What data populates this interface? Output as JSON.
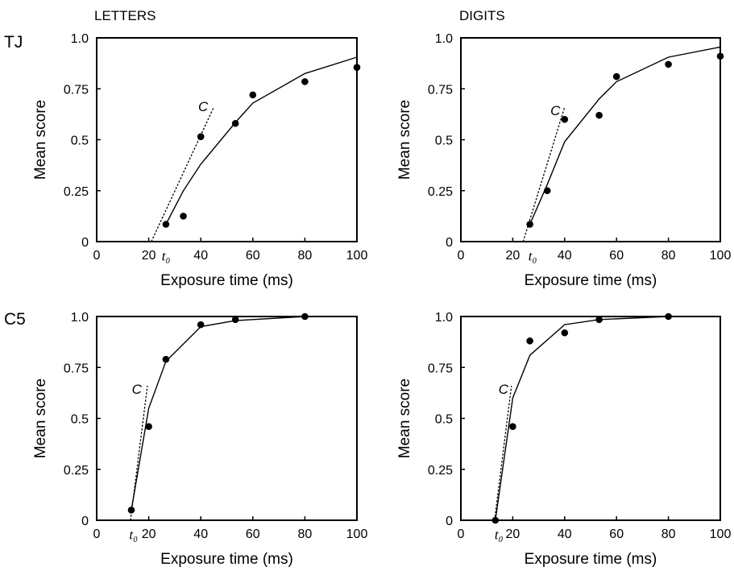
{
  "column_titles": [
    "LETTERS",
    "DIGITS"
  ],
  "row_labels": [
    "TJ",
    "C5"
  ],
  "chart_data": [
    {
      "type": "scatter",
      "panel": "TJ-LETTERS",
      "xlabel": "Exposure time (ms)",
      "ylabel": "Mean score",
      "xlim": [
        0,
        100
      ],
      "ylim": [
        0,
        1.0
      ],
      "x_ticks": [
        0,
        20,
        40,
        60,
        80,
        100
      ],
      "y_ticks": [
        "0",
        "0.25",
        "0.5",
        "0.75",
        "1.0"
      ],
      "series": [
        {
          "kind": "points",
          "x": [
            26.6,
            33.3,
            40,
            53.3,
            60,
            80,
            100
          ],
          "y": [
            0.085,
            0.125,
            0.515,
            0.58,
            0.72,
            0.785,
            0.855
          ]
        },
        {
          "kind": "fit",
          "x": [
            26.6,
            33.3,
            40,
            53.3,
            60,
            80,
            100
          ],
          "y": [
            0.085,
            0.25,
            0.38,
            0.585,
            0.68,
            0.825,
            0.905
          ]
        },
        {
          "kind": "tangent",
          "x": [
            21,
            45
          ],
          "y": [
            0,
            0.66
          ]
        }
      ],
      "annotations": [
        {
          "text": "C",
          "x": 39,
          "y": 0.64
        },
        {
          "text": "t₀",
          "x": 25,
          "y": -0.07
        }
      ]
    },
    {
      "type": "scatter",
      "panel": "TJ-DIGITS",
      "xlabel": "Exposure time (ms)",
      "ylabel": "Mean score",
      "xlim": [
        0,
        100
      ],
      "ylim": [
        0,
        1.0
      ],
      "x_ticks": [
        0,
        20,
        40,
        60,
        80,
        100
      ],
      "y_ticks": [
        "0",
        "0.25",
        "0.5",
        "0.75",
        "1.0"
      ],
      "series": [
        {
          "kind": "points",
          "x": [
            26.6,
            33.3,
            40,
            53.3,
            60,
            80,
            100
          ],
          "y": [
            0.085,
            0.25,
            0.6,
            0.62,
            0.81,
            0.87,
            0.91
          ]
        },
        {
          "kind": "fit",
          "x": [
            26.6,
            33.3,
            40,
            53.3,
            60,
            80,
            100
          ],
          "y": [
            0.085,
            0.28,
            0.49,
            0.7,
            0.785,
            0.905,
            0.955
          ]
        },
        {
          "kind": "tangent",
          "x": [
            24,
            40
          ],
          "y": [
            0,
            0.66
          ]
        }
      ],
      "annotations": [
        {
          "text": "C",
          "x": 34.5,
          "y": 0.62
        },
        {
          "text": "t₀",
          "x": 26,
          "y": -0.07
        }
      ]
    },
    {
      "type": "scatter",
      "panel": "C5-LETTERS",
      "xlabel": "Exposure time (ms)",
      "ylabel": "Mean score",
      "xlim": [
        0,
        100
      ],
      "ylim": [
        0,
        1.0
      ],
      "x_ticks": [
        0,
        20,
        40,
        60,
        80,
        100
      ],
      "y_ticks": [
        "0",
        "0.25",
        "0.5",
        "0.75",
        "1.0"
      ],
      "series": [
        {
          "kind": "points",
          "x": [
            13.3,
            20,
            26.6,
            40,
            53.3,
            80
          ],
          "y": [
            0.05,
            0.46,
            0.79,
            0.96,
            0.985,
            1.0
          ]
        },
        {
          "kind": "fit",
          "x": [
            13.3,
            20,
            26.6,
            40,
            53.3,
            80
          ],
          "y": [
            0.05,
            0.55,
            0.78,
            0.95,
            0.98,
            1.0
          ]
        },
        {
          "kind": "tangent",
          "x": [
            13,
            19.5
          ],
          "y": [
            0,
            0.66
          ]
        }
      ],
      "annotations": [
        {
          "text": "C",
          "x": 13.5,
          "y": 0.62
        },
        {
          "text": "t₀",
          "x": 12.5,
          "y": -0.07
        }
      ]
    },
    {
      "type": "scatter",
      "panel": "C5-DIGITS",
      "xlabel": "Exposure time (ms)",
      "ylabel": "Mean score",
      "xlim": [
        0,
        100
      ],
      "ylim": [
        0,
        1.0
      ],
      "x_ticks": [
        0,
        20,
        40,
        60,
        80,
        100
      ],
      "y_ticks": [
        "0",
        "0.25",
        "0.5",
        "0.75",
        "1.0"
      ],
      "series": [
        {
          "kind": "points",
          "x": [
            13.3,
            20,
            26.6,
            40,
            53.3,
            80
          ],
          "y": [
            0.0,
            0.46,
            0.88,
            0.92,
            0.985,
            1.0
          ]
        },
        {
          "kind": "fit",
          "x": [
            13.3,
            20,
            26.6,
            40,
            53.3,
            80
          ],
          "y": [
            0.0,
            0.6,
            0.81,
            0.96,
            0.985,
            1.0
          ]
        },
        {
          "kind": "tangent",
          "x": [
            13,
            19.5
          ],
          "y": [
            0,
            0.66
          ]
        }
      ],
      "annotations": [
        {
          "text": "C",
          "x": 14.5,
          "y": 0.62
        },
        {
          "text": "t₀",
          "x": 13,
          "y": -0.07
        }
      ]
    }
  ]
}
